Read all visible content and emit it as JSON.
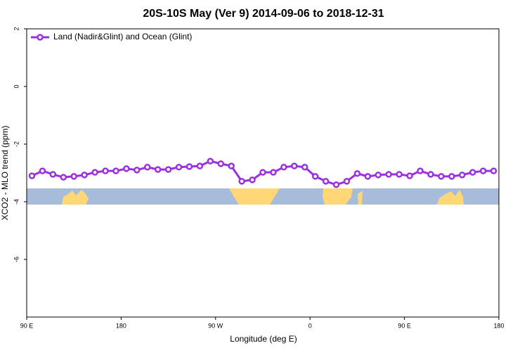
{
  "chart_data": {
    "type": "line",
    "title": "20S-10S May (Ver 9)   2014-09-06 to 2018-12-31",
    "x_label": "Longitude (deg E)",
    "y_label": "XCO2 - MLO trend (ppm)",
    "x": [
      95,
      105,
      115,
      125,
      135,
      145,
      155,
      165,
      175,
      185,
      195,
      205,
      215,
      225,
      235,
      245,
      255,
      265,
      275,
      285,
      295,
      305,
      315,
      325,
      335,
      345,
      355,
      365,
      375,
      385,
      395,
      405,
      415,
      425,
      435,
      445,
      455,
      465,
      475,
      485,
      495,
      505,
      515,
      525,
      535
    ],
    "series": [
      {
        "name": "Land (Nadir&Glint) and Ocean (Glint)",
        "color": "#9b30e0",
        "values": [
          -3.1,
          -2.93,
          -3.05,
          -3.15,
          -3.12,
          -3.07,
          -2.98,
          -2.93,
          -2.93,
          -2.85,
          -2.9,
          -2.8,
          -2.88,
          -2.88,
          -2.8,
          -2.78,
          -2.76,
          -2.59,
          -2.68,
          -2.76,
          -3.29,
          -3.24,
          -2.98,
          -2.98,
          -2.8,
          -2.76,
          -2.8,
          -3.12,
          -3.29,
          -3.41,
          -3.29,
          -3.02,
          -3.12,
          -3.07,
          -3.05,
          -3.05,
          -3.1,
          -2.93,
          -3.05,
          -3.12,
          -3.12,
          -3.07,
          -2.98,
          -2.93,
          -2.93
        ]
      }
    ],
    "xlim": [
      90,
      540
    ],
    "xticks": [
      {
        "value": 90,
        "label": "90 E"
      },
      180,
      {
        "value": 270,
        "label": "90 W"
      },
      {
        "value": 360,
        "label": "0"
      },
      {
        "value": 450,
        "label": "90 E"
      },
      {
        "value": 540,
        "label": "180"
      }
    ],
    "ylim": [
      -8,
      2
    ],
    "yticks": [
      2,
      0,
      -2,
      -4,
      -6
    ],
    "legend": "top-left"
  }
}
